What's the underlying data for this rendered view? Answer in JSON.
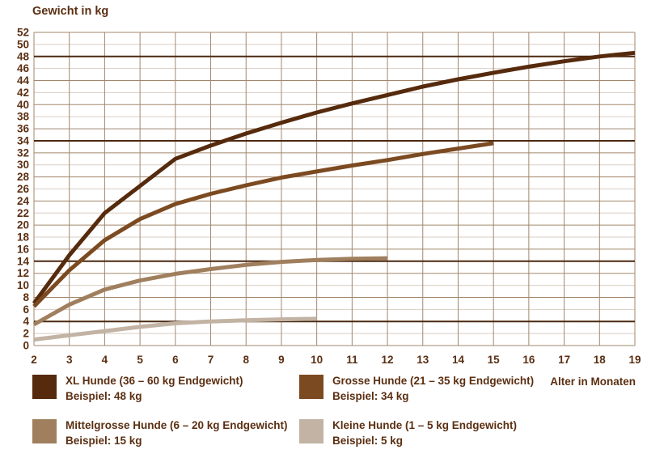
{
  "chart": {
    "title": "Gewicht in kg",
    "xlabel": "Alter in Monaten"
  },
  "colors": {
    "text": "#5b2f12",
    "grid_major": "#a2876d",
    "grid_minor": "#d9cec2",
    "reference_line": "#4a2911",
    "background": "#ffffff"
  },
  "chart_data": {
    "type": "line",
    "title": "Gewicht in kg",
    "xlabel": "Alter in Monaten",
    "ylabel": "Gewicht in kg",
    "xlim": [
      2,
      19
    ],
    "ylim": [
      0,
      52
    ],
    "grid": "on",
    "legend_position": "bottom",
    "x_ticks": [
      2,
      3,
      4,
      5,
      6,
      7,
      8,
      9,
      10,
      11,
      12,
      13,
      14,
      15,
      16,
      17,
      18,
      19
    ],
    "y_ticks": [
      0,
      2,
      4,
      6,
      8,
      10,
      12,
      14,
      16,
      18,
      20,
      22,
      24,
      26,
      28,
      30,
      32,
      34,
      36,
      38,
      40,
      42,
      44,
      46,
      48,
      50,
      52
    ],
    "reference_lines": [
      48,
      34,
      14,
      4
    ],
    "series": [
      {
        "id": "xl-hunde",
        "name": "XL Hunde (36 – 60 kg Endgewicht)",
        "example": "Beispiel: 48 kg",
        "example_value": 48,
        "color": "#552a0d",
        "points": [
          [
            2,
            7
          ],
          [
            3,
            15
          ],
          [
            4,
            22
          ],
          [
            5,
            26.5
          ],
          [
            6,
            31
          ],
          [
            7,
            33.2
          ],
          [
            8,
            35.2
          ],
          [
            9,
            37
          ],
          [
            10,
            38.7
          ],
          [
            11,
            40.2
          ],
          [
            12,
            41.6
          ],
          [
            13,
            43
          ],
          [
            14,
            44.2
          ],
          [
            15,
            45.3
          ],
          [
            16,
            46.3
          ],
          [
            17,
            47.2
          ],
          [
            18,
            48
          ],
          [
            19,
            48.6
          ]
        ]
      },
      {
        "id": "grosse-hunde",
        "name": "Grosse Hunde (21 – 35 kg Endgewicht)",
        "example": "Beispiel: 34 kg",
        "example_value": 34,
        "color": "#7c4a21",
        "points": [
          [
            2,
            6.5
          ],
          [
            3,
            12.5
          ],
          [
            4,
            17.5
          ],
          [
            5,
            21
          ],
          [
            6,
            23.5
          ],
          [
            7,
            25.2
          ],
          [
            8,
            26.6
          ],
          [
            9,
            27.9
          ],
          [
            10,
            28.9
          ],
          [
            11,
            29.9
          ],
          [
            12,
            30.8
          ],
          [
            13,
            31.8
          ],
          [
            14,
            32.7
          ],
          [
            15,
            33.6
          ]
        ]
      },
      {
        "id": "mittelgrosse-hunde",
        "name": "Mittelgrosse Hunde (6 – 20 kg Endgewicht)",
        "example": "Beispiel: 15 kg",
        "example_value": 15,
        "color": "#a07f5e",
        "points": [
          [
            2,
            3.5
          ],
          [
            3,
            6.8
          ],
          [
            4,
            9.3
          ],
          [
            5,
            10.8
          ],
          [
            6,
            11.9
          ],
          [
            7,
            12.7
          ],
          [
            8,
            13.4
          ],
          [
            9,
            13.9
          ],
          [
            10,
            14.2
          ],
          [
            11,
            14.4
          ],
          [
            12,
            14.5
          ]
        ]
      },
      {
        "id": "kleine-hunde",
        "name": "Kleine Hunde (1 – 5 kg Endgewicht)",
        "example": "Beispiel: 5 kg",
        "example_value": 5,
        "color": "#c2b3a4",
        "points": [
          [
            2,
            1
          ],
          [
            3,
            1.7
          ],
          [
            4,
            2.4
          ],
          [
            5,
            3.1
          ],
          [
            6,
            3.7
          ],
          [
            7,
            4
          ],
          [
            8,
            4.2
          ],
          [
            9,
            4.35
          ],
          [
            10,
            4.45
          ]
        ]
      }
    ]
  }
}
